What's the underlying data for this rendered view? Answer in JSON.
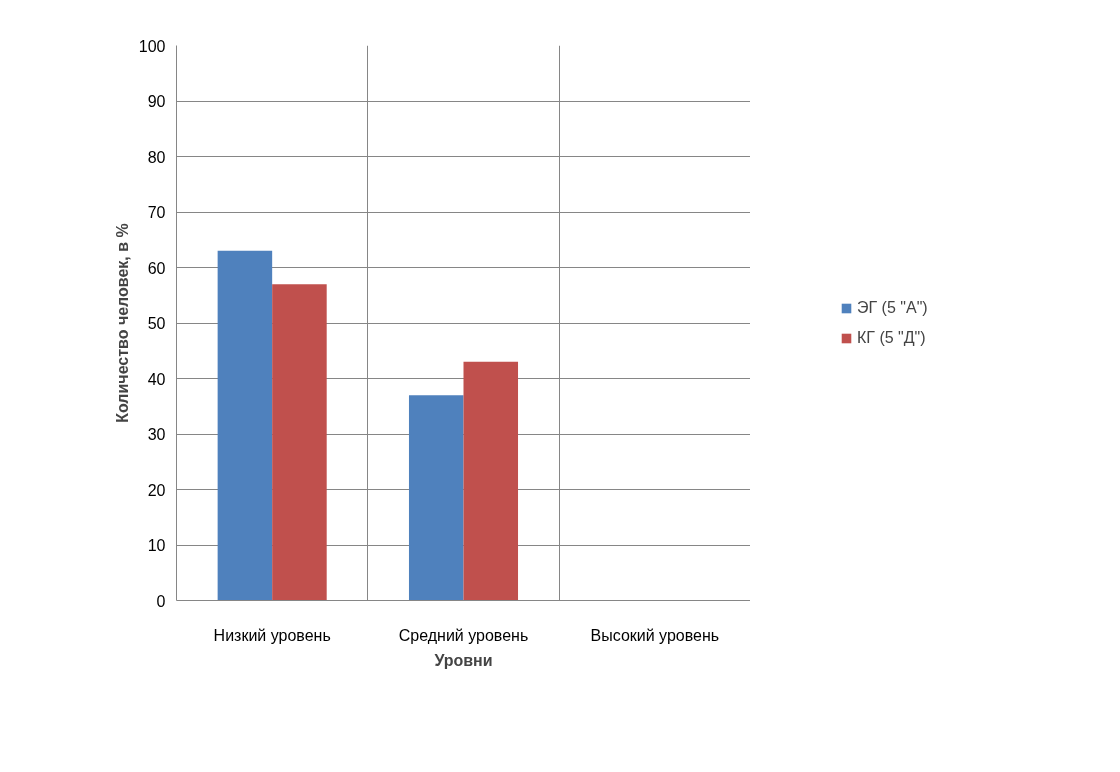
{
  "chart_data": {
    "type": "bar",
    "xlabel": "Уровни",
    "ylabel": "Количество человек, в %",
    "categories": [
      "Низкий уровень",
      "Средний уровень",
      "Высокий уровень"
    ],
    "series": [
      {
        "name": "ЭГ (5 \"А\")",
        "color": "#4f81bd",
        "values": [
          63,
          37,
          0
        ]
      },
      {
        "name": "КГ (5 \"Д\")",
        "color": "#c0504d",
        "values": [
          57,
          43,
          0
        ]
      }
    ],
    "ylim": [
      0,
      100
    ],
    "yticks": [
      0,
      10,
      20,
      30,
      40,
      50,
      60,
      70,
      80,
      90,
      100
    ],
    "grid": true,
    "legend": "right"
  }
}
